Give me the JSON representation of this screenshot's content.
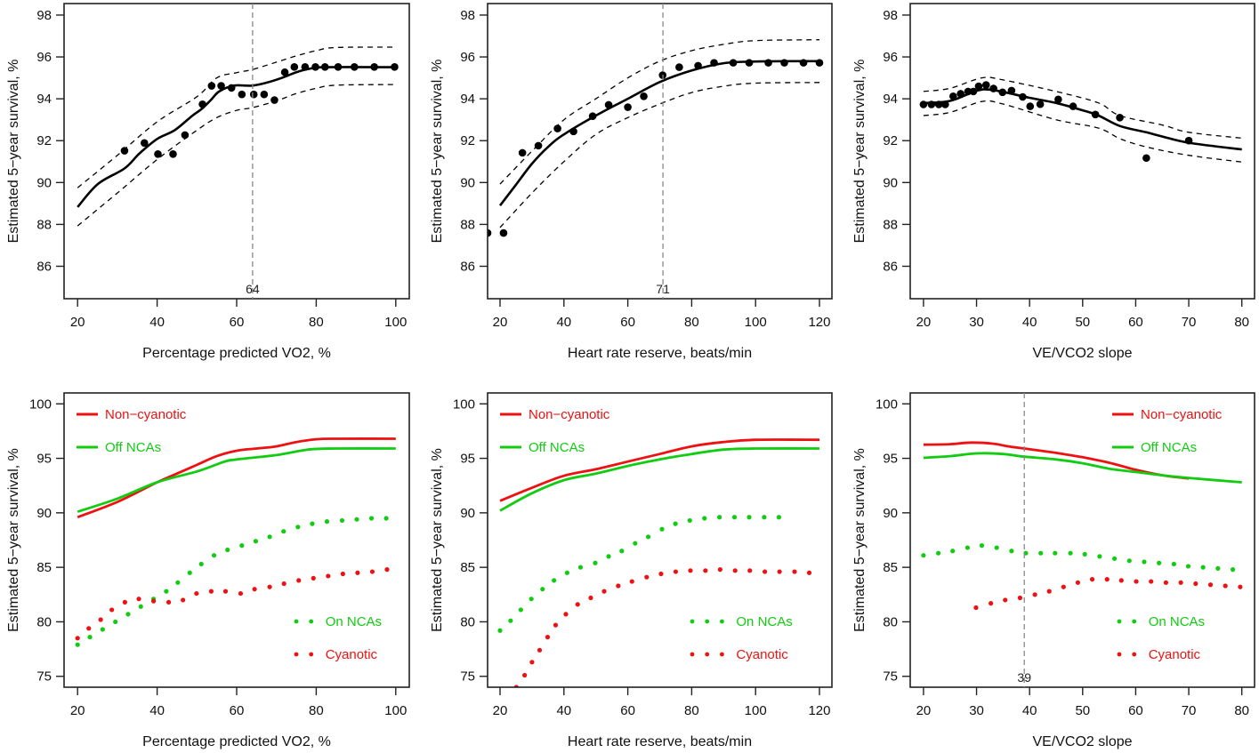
{
  "colors": {
    "red": "#ee1111",
    "green": "#11cc11",
    "black": "#000000",
    "ref_line": "#888888"
  },
  "chart_data": [
    {
      "id": "top-vo2",
      "type": "line",
      "xlabel": "Percentage predicted VO2,  %",
      "ylabel": "Estimated 5−year survival,  %",
      "xlim": [
        16.6,
        103.4
      ],
      "ylim": [
        84.45,
        98.55
      ],
      "xticks": [
        20,
        40,
        60,
        80,
        100
      ],
      "yticks": [
        86,
        88,
        90,
        92,
        94,
        96,
        98
      ],
      "ref_line": {
        "x": 64,
        "label": "64"
      },
      "fit": {
        "x": [
          20,
          25.1,
          31.8,
          35.5,
          40,
          44.4,
          48.9,
          51.1,
          53.4,
          55.6,
          59.3,
          63.8,
          67.5,
          71.2,
          75,
          78.7,
          82.4,
          100
        ],
        "y": [
          88.83,
          89.93,
          90.67,
          91.38,
          92.08,
          92.5,
          93.2,
          93.5,
          93.92,
          94.35,
          94.63,
          94.63,
          94.77,
          94.99,
          95.27,
          95.45,
          95.51,
          95.51
        ]
      },
      "ci_upper": {
        "x": [
          20,
          30,
          40,
          50,
          55,
          60,
          64,
          70,
          75,
          80,
          85,
          100
        ],
        "y": [
          89.75,
          91.3,
          92.9,
          94.1,
          95.0,
          95.25,
          95.4,
          95.75,
          96.05,
          96.3,
          96.45,
          96.47
        ]
      },
      "ci_lower": {
        "x": [
          20,
          30,
          40,
          50,
          55,
          60,
          64,
          70,
          75,
          80,
          85,
          100
        ],
        "y": [
          87.93,
          89.5,
          91.1,
          92.5,
          93.1,
          93.45,
          93.58,
          93.9,
          94.25,
          94.5,
          94.65,
          94.68
        ]
      },
      "points": {
        "x": [
          31.8,
          36.8,
          40.2,
          44.0,
          47.0,
          51.4,
          53.7,
          56.1,
          58.7,
          61.3,
          64.3,
          66.9,
          69.5,
          72.1,
          74.5,
          77.2,
          79.8,
          82.2,
          85.5,
          89.6,
          94.6,
          99.7
        ],
        "y": [
          91.52,
          91.89,
          91.36,
          91.36,
          92.27,
          93.74,
          94.62,
          94.62,
          94.52,
          94.21,
          94.21,
          94.21,
          93.94,
          95.27,
          95.52,
          95.52,
          95.52,
          95.52,
          95.52,
          95.52,
          95.52,
          95.52
        ]
      }
    },
    {
      "id": "top-hrr",
      "type": "line",
      "xlabel": "Heart rate reserve,  beats/min",
      "ylabel": "Estimated 5−year survival,  %",
      "xlim": [
        16.1,
        123.9
      ],
      "ylim": [
        84.45,
        98.55
      ],
      "xticks": [
        20,
        40,
        60,
        80,
        100,
        120
      ],
      "yticks": [
        86,
        88,
        90,
        92,
        94,
        96,
        98
      ],
      "ref_line": {
        "x": 71,
        "label": "71"
      },
      "fit": {
        "x": [
          20,
          25,
          30,
          35,
          40,
          50,
          60,
          70,
          80,
          90,
          100,
          120
        ],
        "y": [
          88.9,
          89.9,
          90.9,
          91.7,
          92.3,
          93.2,
          94.0,
          94.8,
          95.35,
          95.7,
          95.78,
          95.8
        ]
      },
      "ci_upper": {
        "x": [
          20,
          30,
          40,
          50,
          60,
          70,
          80,
          90,
          100,
          120
        ],
        "y": [
          89.93,
          91.5,
          93.0,
          94.0,
          95.0,
          95.8,
          96.3,
          96.6,
          96.78,
          96.82
        ]
      },
      "ci_lower": {
        "x": [
          20,
          30,
          40,
          50,
          60,
          70,
          80,
          90,
          100,
          120
        ],
        "y": [
          87.85,
          89.5,
          91.0,
          92.3,
          93.1,
          93.75,
          94.3,
          94.6,
          94.75,
          94.78
        ]
      },
      "points": {
        "x": [
          16.1,
          21.1,
          27.0,
          32.0,
          38.0,
          43.0,
          49.0,
          54.0,
          60.0,
          65.0,
          70.9,
          76.1,
          82.0,
          87.0,
          93.0,
          98.0,
          104.0,
          109.0,
          115.0,
          120.0
        ],
        "y": [
          87.59,
          87.59,
          91.42,
          91.76,
          92.58,
          92.44,
          93.17,
          93.71,
          93.6,
          94.12,
          95.13,
          95.51,
          95.58,
          95.72,
          95.72,
          95.72,
          95.72,
          95.72,
          95.72,
          95.72
        ]
      }
    },
    {
      "id": "top-vevco2",
      "type": "line",
      "xlabel": "VE/VCO2 slope",
      "ylabel": "Estimated 5−year survival,  %",
      "xlim": [
        17.5,
        82.4
      ],
      "ylim": [
        84.45,
        98.55
      ],
      "xticks": [
        20,
        30,
        40,
        50,
        60,
        70,
        80
      ],
      "yticks": [
        86,
        88,
        90,
        92,
        94,
        96,
        98
      ],
      "ref_line": null,
      "fit": {
        "x": [
          20,
          25,
          30,
          33,
          40,
          45,
          50,
          53,
          57,
          62,
          65,
          70,
          80
        ],
        "y": [
          93.8,
          93.9,
          94.38,
          94.42,
          94.05,
          93.8,
          93.45,
          93.2,
          92.7,
          92.4,
          92.2,
          91.9,
          91.58
        ]
      },
      "ci_upper": {
        "x": [
          20,
          25,
          31,
          35,
          45,
          53,
          57,
          65,
          70,
          80
        ],
        "y": [
          94.35,
          94.5,
          95.0,
          94.9,
          94.35,
          93.8,
          93.2,
          92.75,
          92.4,
          92.12
        ]
      },
      "ci_lower": {
        "x": [
          20,
          25,
          31,
          35,
          45,
          53,
          57,
          62,
          70,
          80
        ],
        "y": [
          93.2,
          93.35,
          93.87,
          93.75,
          93.0,
          92.6,
          92.1,
          91.7,
          91.3,
          90.98
        ]
      },
      "points": {
        "x": [
          20,
          21.5,
          22.9,
          24.1,
          25.6,
          27.0,
          28.4,
          29.4,
          30.4,
          31.8,
          33.2,
          34.9,
          36.6,
          38.7,
          40.1,
          42.0,
          45.4,
          48.2,
          52.4,
          57.0,
          62.0,
          70.0
        ],
        "y": [
          93.73,
          93.73,
          93.73,
          93.73,
          94.12,
          94.24,
          94.35,
          94.35,
          94.6,
          94.66,
          94.49,
          94.31,
          94.39,
          94.09,
          93.64,
          93.74,
          93.97,
          93.64,
          93.25,
          93.1,
          91.17,
          92.0
        ]
      }
    },
    {
      "id": "bottom-vo2",
      "type": "line",
      "xlabel": "Percentage predicted VO2,  %",
      "ylabel": "Estimated 5−year survival,  %",
      "xlim": [
        16.6,
        103.4
      ],
      "ylim": [
        74.0,
        101.0
      ],
      "xticks": [
        20,
        40,
        60,
        80,
        100
      ],
      "yticks": [
        75,
        80,
        85,
        90,
        95,
        100
      ],
      "ref_line": null,
      "legend": {
        "lines": "top-left",
        "dots": "bottom-right"
      },
      "series": [
        {
          "name": "Non−cyanotic",
          "style": "line",
          "color": "red",
          "x": [
            20,
            30,
            40,
            45,
            50,
            55,
            60,
            65,
            70,
            75,
            80,
            85,
            100
          ],
          "y": [
            89.6,
            91.0,
            92.8,
            93.6,
            94.4,
            95.2,
            95.7,
            95.9,
            96.1,
            96.5,
            96.75,
            96.8,
            96.8
          ]
        },
        {
          "name": "Off NCAs",
          "style": "line",
          "color": "green",
          "x": [
            20,
            30,
            40,
            50,
            57,
            60,
            70,
            78,
            85,
            100
          ],
          "y": [
            90.1,
            91.3,
            92.8,
            93.8,
            94.7,
            94.9,
            95.3,
            95.8,
            95.9,
            95.9
          ]
        },
        {
          "name": "On NCAs",
          "style": "dots",
          "color": "green",
          "x": [
            20,
            23.1,
            26.3,
            29.5,
            32.7,
            35.9,
            39.1,
            42.3,
            45.2,
            48.2,
            51.1,
            54.3,
            57.7,
            61.3,
            64.8,
            68.3,
            71.8,
            75.4,
            79.0,
            82.7,
            86.5,
            90.2,
            93.9,
            97.6
          ],
          "y": [
            77.9,
            78.6,
            79.3,
            80.0,
            80.7,
            81.4,
            82.1,
            82.8,
            83.6,
            84.5,
            85.3,
            86.1,
            86.6,
            87.0,
            87.4,
            87.8,
            88.3,
            88.7,
            89.0,
            89.2,
            89.3,
            89.4,
            89.5,
            89.5
          ]
        },
        {
          "name": "Cyanotic",
          "style": "dots",
          "color": "red",
          "x": [
            20,
            22.8,
            25.8,
            28.6,
            31.9,
            35.4,
            39.1,
            42.9,
            46.5,
            49.9,
            53.6,
            57.2,
            61.0,
            64.5,
            68.3,
            71.9,
            75.6,
            79.3,
            83.0,
            86.7,
            90.4,
            94.1,
            97.8
          ],
          "y": [
            78.5,
            79.4,
            80.2,
            81.1,
            81.8,
            82.1,
            81.9,
            81.8,
            82.0,
            82.6,
            82.8,
            82.8,
            82.6,
            83.0,
            83.2,
            83.5,
            83.8,
            84.0,
            84.2,
            84.4,
            84.5,
            84.6,
            84.8
          ]
        }
      ]
    },
    {
      "id": "bottom-hrr",
      "type": "line",
      "xlabel": "Heart rate reserve,  beats/min",
      "ylabel": "Estimated 5−year survival,  %",
      "xlim": [
        16.1,
        123.9
      ],
      "ylim": [
        74.0,
        101.0
      ],
      "xticks": [
        20,
        40,
        60,
        80,
        100,
        120
      ],
      "yticks": [
        75,
        80,
        85,
        90,
        95,
        100
      ],
      "ref_line": null,
      "legend": {
        "lines": "top-left",
        "dots": "bottom-right"
      },
      "series": [
        {
          "name": "Non−cyanotic",
          "style": "line",
          "color": "red",
          "x": [
            20,
            30,
            40,
            50,
            60,
            70,
            80,
            90,
            100,
            120
          ],
          "y": [
            91.1,
            92.3,
            93.4,
            94.0,
            94.7,
            95.4,
            96.1,
            96.5,
            96.7,
            96.7
          ]
        },
        {
          "name": "Off NCAs",
          "style": "line",
          "color": "green",
          "x": [
            20,
            30,
            40,
            50,
            60,
            70,
            80,
            90,
            100,
            120
          ],
          "y": [
            90.2,
            91.8,
            93.0,
            93.6,
            94.3,
            94.9,
            95.4,
            95.8,
            95.9,
            95.9
          ]
        },
        {
          "name": "On NCAs",
          "style": "dots",
          "color": "green",
          "x": [
            20,
            23.3,
            26.5,
            29.8,
            33.3,
            36.9,
            41.0,
            45.2,
            49.8,
            54.0,
            58.1,
            62.3,
            66.4,
            70.7,
            74.9,
            79.4,
            84.0,
            88.7,
            93.4,
            98.0,
            102.7,
            107.3
          ],
          "y": [
            79.2,
            80.1,
            81.1,
            82.1,
            83.0,
            83.8,
            84.5,
            85.0,
            85.4,
            86.0,
            86.5,
            87.2,
            87.8,
            88.5,
            89.0,
            89.3,
            89.5,
            89.6,
            89.6,
            89.6,
            89.6,
            89.6
          ]
        },
        {
          "name": "Cyanotic",
          "style": "dots",
          "color": "red",
          "x": [
            25.1,
            27.7,
            30.0,
            32.4,
            34.9,
            37.4,
            40.6,
            44.3,
            48.4,
            52.6,
            57.0,
            61.3,
            65.9,
            70.4,
            75.0,
            79.6,
            84.3,
            88.9,
            93.6,
            98.2,
            102.9,
            107.5,
            112.2,
            116.8
          ],
          "y": [
            74.0,
            75.1,
            76.3,
            77.4,
            78.6,
            79.7,
            80.7,
            81.6,
            82.2,
            82.8,
            83.3,
            83.7,
            84.1,
            84.4,
            84.6,
            84.7,
            84.7,
            84.8,
            84.7,
            84.7,
            84.6,
            84.6,
            84.6,
            84.5
          ]
        }
      ]
    },
    {
      "id": "bottom-vevco2",
      "type": "line",
      "xlabel": "VE/VCO2 slope",
      "ylabel": "Estimated 5−year survival,  %",
      "xlim": [
        17.5,
        82.4
      ],
      "ylim": [
        74.0,
        101.0
      ],
      "xticks": [
        20,
        30,
        40,
        50,
        60,
        70,
        80
      ],
      "yticks": [
        75,
        80,
        85,
        90,
        95,
        100
      ],
      "ref_line": {
        "x": 39,
        "label": "39"
      },
      "legend": {
        "lines": "top-right",
        "dots": "bottom-right"
      },
      "series": [
        {
          "name": "Non−cyanotic",
          "style": "line",
          "color": "red",
          "x": [
            20,
            25,
            29,
            33,
            36,
            39,
            45,
            50,
            55,
            60,
            65,
            70
          ],
          "y": [
            96.25,
            96.3,
            96.45,
            96.35,
            96.1,
            95.9,
            95.5,
            95.1,
            94.6,
            93.95,
            93.45,
            93.15
          ]
        },
        {
          "name": "Off NCAs",
          "style": "line",
          "color": "green",
          "x": [
            20,
            25,
            30,
            35,
            39,
            45,
            50,
            55,
            60,
            65,
            70,
            80
          ],
          "y": [
            95.05,
            95.2,
            95.45,
            95.4,
            95.15,
            94.9,
            94.55,
            94.05,
            93.75,
            93.45,
            93.2,
            92.8
          ]
        },
        {
          "name": "On NCAs",
          "style": "dots",
          "color": "green",
          "x": [
            20,
            22.8,
            25.5,
            28.3,
            31.0,
            33.8,
            36.6,
            39.3,
            42.1,
            44.8,
            47.7,
            50.4,
            53.2,
            56.0,
            58.8,
            61.6,
            64.4,
            67.2,
            69.9,
            72.7,
            75.5,
            78.3
          ],
          "y": [
            86.1,
            86.3,
            86.5,
            86.8,
            87.0,
            86.8,
            86.5,
            86.3,
            86.3,
            86.3,
            86.3,
            86.2,
            86.0,
            85.8,
            85.6,
            85.5,
            85.4,
            85.3,
            85.1,
            85.0,
            84.9,
            84.8
          ]
        },
        {
          "name": "Cyanotic",
          "style": "dots",
          "color": "red",
          "x": [
            29.9,
            32.7,
            35.4,
            38.2,
            41.0,
            43.7,
            46.4,
            49.1,
            51.8,
            54.6,
            57.3,
            60.1,
            62.9,
            65.7,
            68.5,
            71.3,
            74.1,
            76.9,
            79.7
          ],
          "y": [
            81.3,
            81.7,
            82.0,
            82.2,
            82.5,
            82.8,
            83.2,
            83.6,
            83.9,
            83.9,
            83.8,
            83.7,
            83.7,
            83.6,
            83.6,
            83.5,
            83.4,
            83.3,
            83.2
          ]
        }
      ]
    }
  ]
}
